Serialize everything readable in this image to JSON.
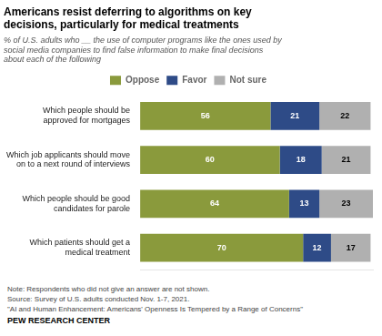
{
  "chart_data": {
    "type": "bar",
    "orientation": "horizontal",
    "stacked": true,
    "title": "Americans resist deferring to algorithms on key\ndecisions, particularly for medical treatments",
    "subtitle": "% of U.S. adults who __ the use of computer programs like the ones used by\nsocial media companies to find false information to make final decisions\nabout each of the following",
    "categories": [
      "Which people should be\napproved for mortgages",
      "Which job applicants should move\non to a next round of interviews",
      "Which people should be good\ncandidates for parole",
      "Which patients should get a\nmedical treatment"
    ],
    "series": [
      {
        "name": "Oppose",
        "color": "#8a9a3c",
        "values": [
          56,
          60,
          64,
          70
        ]
      },
      {
        "name": "Favor",
        "color": "#2e4b87",
        "values": [
          21,
          18,
          13,
          12
        ]
      },
      {
        "name": "Not sure",
        "color": "#b0b0b0",
        "values": [
          22,
          21,
          23,
          17
        ]
      }
    ],
    "xlim": [
      0,
      100
    ],
    "data_labels": true,
    "tick_labels": "y",
    "grid": false,
    "legend": "top",
    "annotations": [
      "Note: Respondents who did not give an answer are not shown.",
      "Source: Survey of U.S. adults conducted Nov. 1-7, 2021.",
      "\"AI and Human Enhancement: Americans' Openness Is Tempered by a Range of Concerns\"",
      "PEW RESEARCH CENTER"
    ]
  }
}
